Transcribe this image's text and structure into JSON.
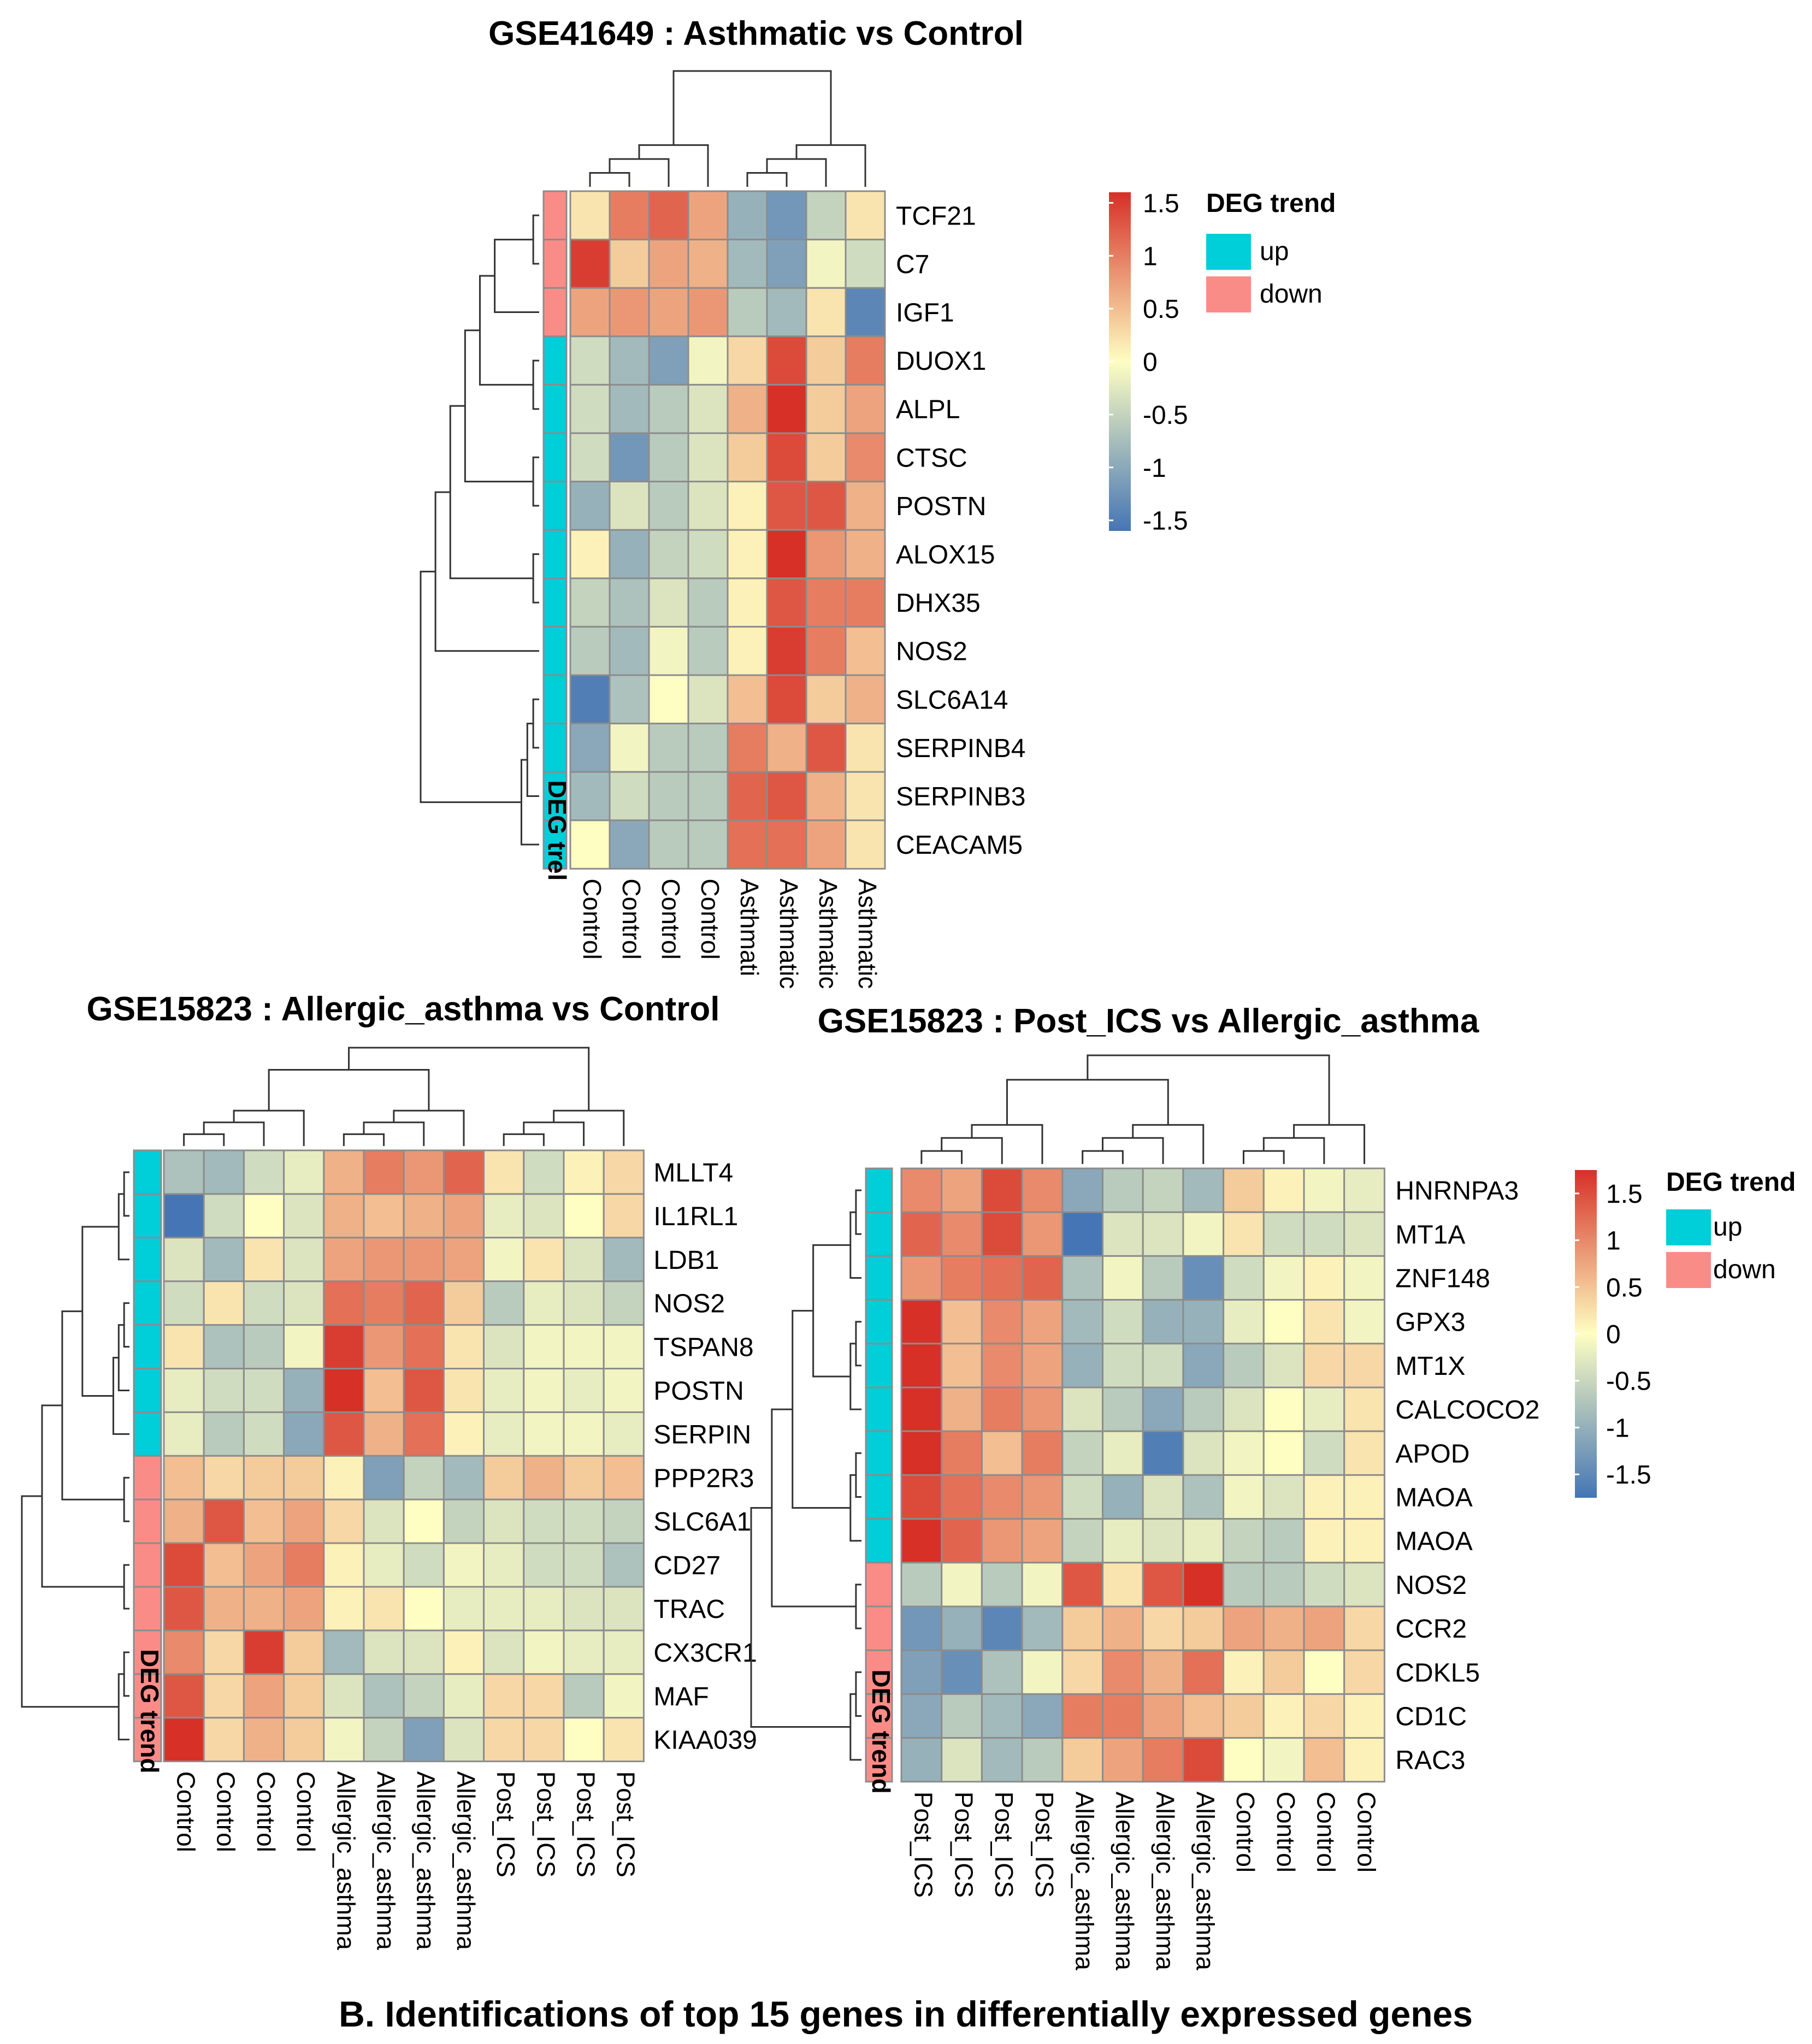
{
  "caption": "B. Identifications of  top 15 genes in differentially expressed genes",
  "palette": {
    "up": "#00CED9",
    "down": "#FA8C87",
    "low": "#4575B4",
    "mid": "#FEFEC2",
    "high": "#D73027",
    "grid": "#8c8c8c"
  },
  "chart_data": [
    {
      "type": "heatmap",
      "title": "GSE41649 : Asthmatic vs Control",
      "annotation_label": "DEG trel",
      "rows": [
        "TCF21",
        "C7",
        "IGF1",
        "DUOX1",
        "ALPL",
        "CTSC",
        "POSTN",
        "ALOX15",
        "DHX35",
        "NOS2",
        "SLC6A14",
        "SERPINB4",
        "SERPINB3",
        "CEACAM5"
      ],
      "columns": [
        "Control",
        "Control",
        "Control",
        "Control",
        "Asthmati",
        "Asthmatic",
        "Asthmatic",
        "Asthmatic"
      ],
      "deg_trend": [
        "down",
        "down",
        "down",
        "up",
        "up",
        "up",
        "up",
        "up",
        "up",
        "up",
        "up",
        "up",
        "up",
        "up"
      ],
      "values": [
        [
          0.2,
          1.0,
          1.2,
          0.7,
          -0.9,
          -1.2,
          -0.5,
          0.2
        ],
        [
          1.5,
          0.4,
          0.7,
          0.6,
          -0.8,
          -1.1,
          -0.1,
          -0.4
        ],
        [
          0.7,
          0.8,
          0.7,
          0.8,
          -0.6,
          -0.8,
          0.2,
          -1.4
        ],
        [
          -0.4,
          -0.8,
          -1.1,
          -0.1,
          0.3,
          1.4,
          0.4,
          1.0
        ],
        [
          -0.4,
          -0.8,
          -0.6,
          -0.3,
          0.6,
          1.6,
          0.4,
          0.7
        ],
        [
          -0.4,
          -1.2,
          -0.6,
          -0.3,
          0.4,
          1.4,
          0.4,
          0.9
        ],
        [
          -0.9,
          -0.3,
          -0.6,
          -0.3,
          0.1,
          1.3,
          1.3,
          0.6
        ],
        [
          0.1,
          -0.9,
          -0.5,
          -0.4,
          0.1,
          1.6,
          0.8,
          0.6
        ],
        [
          -0.5,
          -0.7,
          -0.3,
          -0.6,
          0.1,
          1.3,
          1.0,
          1.0
        ],
        [
          -0.6,
          -0.8,
          -0.1,
          -0.6,
          0.1,
          1.5,
          1.0,
          0.5
        ],
        [
          -1.5,
          -0.7,
          0.0,
          -0.3,
          0.5,
          1.4,
          0.4,
          0.6
        ],
        [
          -1.0,
          -0.1,
          -0.6,
          -0.6,
          1.0,
          0.6,
          1.3,
          0.2
        ],
        [
          -0.8,
          -0.4,
          -0.6,
          -0.6,
          1.2,
          1.3,
          0.6,
          0.2
        ],
        [
          0.0,
          -1.0,
          -0.6,
          -0.6,
          1.1,
          1.1,
          0.7,
          0.2
        ]
      ],
      "legend": {
        "ticks": [
          "1.5",
          "1",
          "0.5",
          "0",
          "-0.5",
          "-1",
          "-1.5"
        ],
        "range": [
          -1.6,
          1.6
        ],
        "title": "DEG trend",
        "up": "up",
        "down": "down"
      }
    },
    {
      "type": "heatmap",
      "title": "GSE15823 : Allergic_asthma vs Control",
      "annotation_label": "DEG trend",
      "rows": [
        "MLLT4",
        "IL1RL1",
        "LDB1",
        "NOS2",
        "TSPAN8",
        "POSTN",
        "SERPIN",
        "PPP2R3",
        "SLC6A1",
        "CD27",
        "TRAC",
        "CX3CR1",
        "MAF",
        "KIAA039"
      ],
      "columns": [
        "Control",
        "Control",
        "Control",
        "Control",
        "Allergic_asthma",
        "Allergic_asthma",
        "Allergic_asthma",
        "Allergic_asthma",
        "Post_ICS",
        "Post_ICS",
        "Post_ICS",
        "Post_ICS"
      ],
      "deg_trend": [
        "up",
        "up",
        "up",
        "up",
        "up",
        "up",
        "up",
        "down",
        "down",
        "down",
        "down",
        "down",
        "down",
        "down"
      ],
      "values": [
        [
          -0.7,
          -0.8,
          -0.4,
          -0.2,
          0.6,
          1.0,
          0.8,
          1.2,
          0.2,
          -0.4,
          0.1,
          0.3
        ],
        [
          -1.6,
          -0.4,
          0.0,
          -0.3,
          0.6,
          0.5,
          0.6,
          0.7,
          -0.2,
          -0.3,
          0.0,
          0.3
        ],
        [
          -0.3,
          -0.8,
          0.2,
          -0.3,
          0.7,
          0.8,
          0.8,
          0.7,
          -0.1,
          0.2,
          -0.3,
          -0.8
        ],
        [
          -0.4,
          0.2,
          -0.4,
          -0.3,
          1.1,
          1.0,
          1.2,
          0.4,
          -0.6,
          -0.2,
          -0.3,
          -0.5
        ],
        [
          0.2,
          -0.7,
          -0.6,
          -0.1,
          1.5,
          0.8,
          1.1,
          0.2,
          -0.3,
          -0.1,
          -0.1,
          -0.1
        ],
        [
          -0.2,
          -0.4,
          -0.4,
          -0.9,
          1.6,
          0.5,
          1.3,
          0.2,
          -0.2,
          -0.1,
          -0.2,
          -0.1
        ],
        [
          -0.2,
          -0.6,
          -0.4,
          -1.0,
          1.3,
          0.6,
          1.1,
          0.1,
          -0.2,
          -0.1,
          -0.1,
          -0.2
        ],
        [
          0.5,
          0.3,
          0.4,
          0.4,
          0.1,
          -1.1,
          -0.5,
          -0.8,
          0.4,
          0.6,
          0.4,
          0.5
        ],
        [
          0.6,
          1.3,
          0.5,
          0.7,
          0.3,
          -0.3,
          0.0,
          -0.5,
          -0.3,
          -0.4,
          -0.4,
          -0.5
        ],
        [
          1.4,
          0.5,
          0.7,
          1.0,
          0.1,
          -0.2,
          -0.4,
          -0.1,
          -0.2,
          -0.4,
          -0.4,
          -0.7
        ],
        [
          1.3,
          0.6,
          0.6,
          0.7,
          0.1,
          0.2,
          0.0,
          -0.2,
          -0.2,
          -0.2,
          -0.3,
          -0.3
        ],
        [
          0.9,
          0.3,
          1.5,
          0.4,
          -0.8,
          -0.3,
          -0.3,
          0.1,
          -0.3,
          -0.1,
          -0.2,
          -0.2
        ],
        [
          1.3,
          0.3,
          0.7,
          0.4,
          -0.3,
          -0.7,
          -0.5,
          -0.2,
          0.3,
          0.3,
          -0.6,
          -0.1
        ],
        [
          1.6,
          0.3,
          0.6,
          0.4,
          -0.1,
          -0.5,
          -1.1,
          -0.3,
          0.3,
          0.3,
          0.0,
          0.2
        ]
      ],
      "legend": null
    },
    {
      "type": "heatmap",
      "title": "GSE15823 : Post_ICS vs Allergic_asthma",
      "annotation_label": "DEG trend",
      "rows": [
        "HNRNPA3",
        "MT1A",
        "ZNF148",
        "GPX3",
        "MT1X",
        "CALCOCO2",
        "APOD",
        "MAOA",
        "MAOA",
        "NOS2",
        "CCR2",
        "CDKL5",
        "CD1C",
        "RAC3"
      ],
      "columns": [
        "Post_ICS",
        "Post_ICS",
        "Post_ICS",
        "Post_ICS",
        "Allergic_asthma",
        "Allergic_asthma",
        "Allergic_asthma",
        "Allergic_asthma",
        "Control",
        "Control",
        "Control",
        "Control"
      ],
      "deg_trend": [
        "up",
        "up",
        "up",
        "up",
        "up",
        "up",
        "up",
        "up",
        "up",
        "down",
        "down",
        "down",
        "down",
        "down"
      ],
      "values": [
        [
          0.9,
          0.7,
          1.4,
          0.9,
          -1.0,
          -0.6,
          -0.5,
          -0.8,
          0.4,
          0.1,
          -0.1,
          -0.2
        ],
        [
          1.2,
          0.9,
          1.4,
          0.8,
          -1.6,
          -0.3,
          -0.3,
          -0.1,
          0.2,
          -0.4,
          -0.4,
          -0.3
        ],
        [
          0.8,
          1.0,
          1.1,
          1.2,
          -0.7,
          -0.1,
          -0.6,
          -1.3,
          -0.4,
          -0.1,
          0.1,
          -0.1
        ],
        [
          1.8,
          0.5,
          0.9,
          0.7,
          -0.8,
          -0.4,
          -0.9,
          -0.9,
          -0.2,
          0.0,
          0.2,
          -0.1
        ],
        [
          1.6,
          0.5,
          0.9,
          0.7,
          -0.9,
          -0.4,
          -0.4,
          -1.0,
          -0.6,
          -0.3,
          0.3,
          0.3
        ],
        [
          1.6,
          0.6,
          1.0,
          0.8,
          -0.3,
          -0.6,
          -1.0,
          -0.6,
          -0.3,
          0.0,
          -0.2,
          0.2
        ],
        [
          1.6,
          1.0,
          0.5,
          1.0,
          -0.5,
          -0.2,
          -1.5,
          -0.3,
          -0.1,
          0.0,
          -0.4,
          0.2
        ],
        [
          1.4,
          1.1,
          0.9,
          0.8,
          -0.4,
          -0.9,
          -0.3,
          -0.7,
          -0.1,
          -0.3,
          0.1,
          0.1
        ],
        [
          1.6,
          1.2,
          0.8,
          0.7,
          -0.5,
          -0.2,
          -0.3,
          -0.2,
          -0.5,
          -0.6,
          0.1,
          0.1
        ],
        [
          -0.6,
          -0.1,
          -0.6,
          -0.1,
          1.3,
          0.2,
          1.3,
          1.6,
          -0.6,
          -0.6,
          -0.4,
          -0.3
        ],
        [
          -1.2,
          -0.9,
          -1.4,
          -0.8,
          0.4,
          0.6,
          0.3,
          0.4,
          0.7,
          0.6,
          0.7,
          0.3
        ],
        [
          -1.1,
          -1.3,
          -0.7,
          -0.1,
          0.3,
          0.9,
          0.6,
          1.1,
          0.1,
          0.4,
          0.0,
          0.3
        ],
        [
          -1.0,
          -0.6,
          -0.8,
          -1.0,
          1.0,
          1.0,
          0.7,
          0.5,
          0.4,
          0.1,
          0.3,
          0.1
        ],
        [
          -0.9,
          -0.3,
          -0.8,
          -0.6,
          0.4,
          0.7,
          1.0,
          1.4,
          0.0,
          -0.1,
          0.5,
          0.1
        ]
      ],
      "legend": {
        "ticks": [
          "1.5",
          "1",
          "0.5",
          "0",
          "-0.5",
          "-1",
          "-1.5"
        ],
        "range": [
          -1.75,
          1.75
        ],
        "title": "DEG trend",
        "up": "up",
        "down": "down"
      }
    }
  ]
}
